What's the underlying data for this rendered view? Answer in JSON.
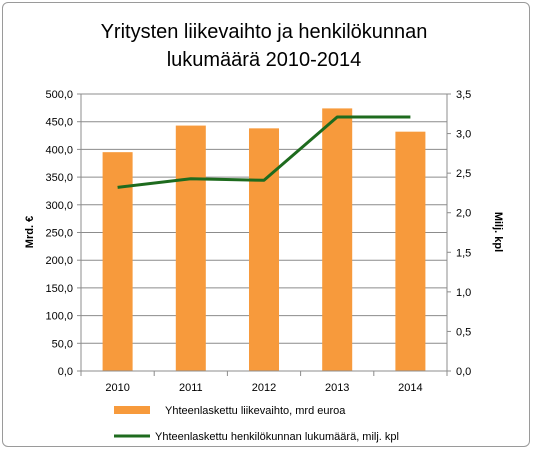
{
  "chart_data": {
    "type": "bar",
    "title": [
      "Yritysten liikevaihto ja henkilökunnan",
      "lukumäärä 2010-2014"
    ],
    "categories": [
      "2010",
      "2011",
      "2012",
      "2013",
      "2014"
    ],
    "series": [
      {
        "name": "Yhteenlaskettu liikevaihto, mrd  euroa",
        "type": "bar",
        "axis": "left",
        "color": "#f79a3c",
        "values": [
          395,
          443,
          438,
          474,
          432
        ]
      },
      {
        "name": "Yhteenlaskettu henkilökunnan lukumäärä, milj. kpl",
        "type": "line",
        "axis": "right",
        "color": "#1e6b1e",
        "values": [
          2.32,
          2.43,
          2.41,
          3.21,
          3.21
        ]
      }
    ],
    "ylabel": "Mrd. €",
    "ylabel_right": "Milj. kpl",
    "ylim": [
      0,
      500
    ],
    "ylim_right": [
      0,
      3.5
    ],
    "yticks": [
      "0,0",
      "50,0",
      "100,0",
      "150,0",
      "200,0",
      "250,0",
      "300,0",
      "350,0",
      "400,0",
      "450,0",
      "500,0"
    ],
    "yticks_right": [
      "0,0",
      "0,5",
      "1,0",
      "1,5",
      "2,0",
      "2,5",
      "3,0",
      "3,5"
    ],
    "grid": true,
    "legend_position": "bottom"
  }
}
